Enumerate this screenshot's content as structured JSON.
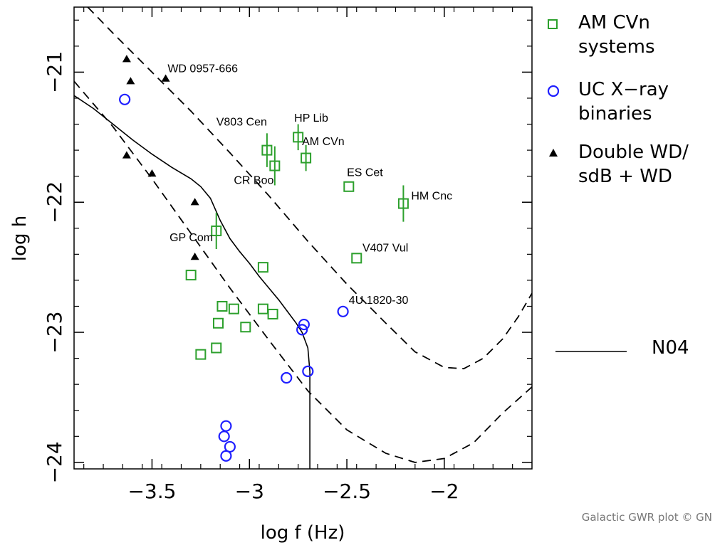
{
  "chart_data": {
    "type": "scatter",
    "xlabel": "log f (Hz)",
    "ylabel": "log h",
    "xlim": [
      -3.9,
      -1.55
    ],
    "ylim": [
      -24.05,
      -20.5
    ],
    "x_ticks": [
      -3.5,
      -3,
      -2.5,
      -2
    ],
    "x_tick_labels": [
      "−3.5",
      "−3",
      "−2.5",
      "−2"
    ],
    "y_ticks": [
      -21,
      -22,
      -23,
      -24
    ],
    "y_tick_labels": [
      "−21",
      "−22",
      "−23",
      "−24"
    ],
    "grid": false,
    "legend": [
      {
        "marker": "square",
        "color": "#2ca02c",
        "lines": [
          "AM CVn",
          "systems"
        ]
      },
      {
        "marker": "circle",
        "color": "#1f1fff",
        "lines": [
          "UC X−ray",
          "binaries"
        ]
      },
      {
        "marker": "triangle",
        "color": "#000000",
        "lines": [
          "Double WD/",
          "sdB + WD"
        ]
      },
      {
        "marker": "line",
        "color": "#000000",
        "lines": [
          "N04"
        ]
      }
    ],
    "am_cvn": [
      {
        "x": -2.91,
        "y": -21.6,
        "err": 0.13
      },
      {
        "x": -2.75,
        "y": -21.5,
        "err": 0.1
      },
      {
        "x": -2.71,
        "y": -21.66,
        "err": 0.1
      },
      {
        "x": -2.87,
        "y": -21.72,
        "err": 0.15
      },
      {
        "x": -2.49,
        "y": -21.88,
        "err": 0
      },
      {
        "x": -2.21,
        "y": -22.01,
        "err": 0.14
      },
      {
        "x": -3.17,
        "y": -22.22,
        "err": 0.14
      },
      {
        "x": -2.45,
        "y": -22.43,
        "err": 0
      },
      {
        "x": -2.93,
        "y": -22.5,
        "err": 0
      },
      {
        "x": -3.3,
        "y": -22.56,
        "err": 0
      },
      {
        "x": -3.14,
        "y": -22.8,
        "err": 0
      },
      {
        "x": -3.08,
        "y": -22.82,
        "err": 0
      },
      {
        "x": -2.93,
        "y": -22.82,
        "err": 0
      },
      {
        "x": -2.88,
        "y": -22.86,
        "err": 0
      },
      {
        "x": -3.16,
        "y": -22.93,
        "err": 0
      },
      {
        "x": -3.02,
        "y": -22.96,
        "err": 0
      },
      {
        "x": -3.17,
        "y": -23.12,
        "err": 0
      },
      {
        "x": -3.25,
        "y": -23.17,
        "err": 0
      }
    ],
    "uc_xray": [
      {
        "x": -3.64,
        "y": -21.21
      },
      {
        "x": -2.52,
        "y": -22.84
      },
      {
        "x": -2.72,
        "y": -22.94
      },
      {
        "x": -2.73,
        "y": -22.98
      },
      {
        "x": -2.7,
        "y": -23.3
      },
      {
        "x": -2.81,
        "y": -23.35
      },
      {
        "x": -3.12,
        "y": -23.72
      },
      {
        "x": -3.13,
        "y": -23.8
      },
      {
        "x": -3.1,
        "y": -23.88
      },
      {
        "x": -3.12,
        "y": -23.95
      }
    ],
    "double_wd": [
      {
        "x": -3.63,
        "y": -20.9
      },
      {
        "x": -3.61,
        "y": -21.07
      },
      {
        "x": -3.43,
        "y": -21.05
      },
      {
        "x": -3.63,
        "y": -21.64
      },
      {
        "x": -3.5,
        "y": -21.78
      },
      {
        "x": -3.28,
        "y": -22.0
      },
      {
        "x": -3.28,
        "y": -22.42
      }
    ],
    "annotations": [
      {
        "text": "WD 0957-666",
        "x": -3.42,
        "y": -21.0
      },
      {
        "text": "V803 Cen",
        "x": -3.17,
        "y": -21.41
      },
      {
        "text": "HP Lib",
        "x": -2.77,
        "y": -21.38
      },
      {
        "text": "AM CVn",
        "x": -2.73,
        "y": -21.56
      },
      {
        "text": "CR Boo",
        "x": -3.08,
        "y": -21.86
      },
      {
        "text": "ES Cet",
        "x": -2.5,
        "y": -21.8
      },
      {
        "text": "HM Cnc",
        "x": -2.17,
        "y": -21.98
      },
      {
        "text": "GP Com",
        "x": -3.41,
        "y": -22.3
      },
      {
        "text": "V407 Vul",
        "x": -2.42,
        "y": -22.38
      },
      {
        "text": "4U 1820-30",
        "x": -2.49,
        "y": -22.78
      }
    ],
    "n04_curve": [
      [
        -3.9,
        -21.18
      ],
      [
        -3.8,
        -21.28
      ],
      [
        -3.7,
        -21.4
      ],
      [
        -3.6,
        -21.52
      ],
      [
        -3.5,
        -21.63
      ],
      [
        -3.4,
        -21.73
      ],
      [
        -3.3,
        -21.82
      ],
      [
        -3.25,
        -21.88
      ],
      [
        -3.2,
        -21.97
      ],
      [
        -3.15,
        -22.14
      ],
      [
        -3.1,
        -22.28
      ],
      [
        -3.05,
        -22.38
      ],
      [
        -3.0,
        -22.47
      ],
      [
        -2.95,
        -22.57
      ],
      [
        -2.9,
        -22.66
      ],
      [
        -2.85,
        -22.75
      ],
      [
        -2.8,
        -22.85
      ],
      [
        -2.76,
        -22.93
      ],
      [
        -2.73,
        -23.0
      ],
      [
        -2.7,
        -23.12
      ],
      [
        -2.69,
        -23.3
      ],
      [
        -2.69,
        -24.05
      ]
    ],
    "dashed_upper": [
      [
        -3.83,
        -20.5
      ],
      [
        -3.7,
        -20.7
      ],
      [
        -3.5,
        -21.0
      ],
      [
        -3.3,
        -21.3
      ],
      [
        -3.1,
        -21.62
      ],
      [
        -2.9,
        -21.95
      ],
      [
        -2.7,
        -22.3
      ],
      [
        -2.5,
        -22.63
      ],
      [
        -2.3,
        -22.93
      ],
      [
        -2.15,
        -23.15
      ],
      [
        -2.0,
        -23.27
      ],
      [
        -1.9,
        -23.28
      ],
      [
        -1.8,
        -23.2
      ],
      [
        -1.7,
        -23.05
      ],
      [
        -1.62,
        -22.88
      ],
      [
        -1.55,
        -22.7
      ]
    ],
    "dashed_lower": [
      [
        -3.9,
        -21.07
      ],
      [
        -3.7,
        -21.42
      ],
      [
        -3.5,
        -21.82
      ],
      [
        -3.3,
        -22.24
      ],
      [
        -3.1,
        -22.66
      ],
      [
        -2.9,
        -23.06
      ],
      [
        -2.7,
        -23.45
      ],
      [
        -2.5,
        -23.75
      ],
      [
        -2.3,
        -23.93
      ],
      [
        -2.15,
        -24.0
      ],
      [
        -2.0,
        -23.97
      ],
      [
        -1.85,
        -23.85
      ],
      [
        -1.7,
        -23.62
      ],
      [
        -1.55,
        -23.42
      ]
    ]
  },
  "credit": "Galactic GWR plot © GN"
}
